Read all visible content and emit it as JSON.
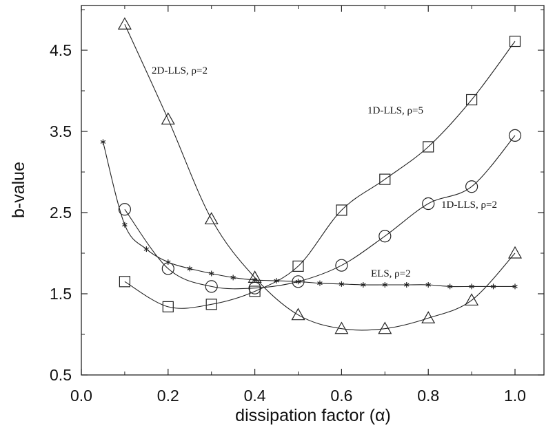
{
  "chart_data": {
    "type": "line",
    "xlabel": "dissipation factor (α)",
    "ylabel": "b-value",
    "xlim": [
      0.0,
      1.05
    ],
    "ylim": [
      0.5,
      5.0
    ],
    "x_ticks": [
      "0.0",
      "0.2",
      "0.4",
      "0.6",
      "0.8",
      "1.0"
    ],
    "y_ticks": [
      "0.5",
      "1.5",
      "2.5",
      "3.5",
      "4.5"
    ],
    "grid": false,
    "legend": "none",
    "series": [
      {
        "name": "2D-LLS, ρ=2",
        "marker": "triangle",
        "x": [
          0.1,
          0.2,
          0.3,
          0.4,
          0.5,
          0.6,
          0.7,
          0.8,
          0.9,
          1.0
        ],
        "y": [
          4.82,
          3.65,
          2.42,
          1.7,
          1.24,
          1.07,
          1.07,
          1.2,
          1.42,
          2.0
        ]
      },
      {
        "name": "1D-LLS, ρ=5",
        "marker": "square",
        "x": [
          0.1,
          0.2,
          0.3,
          0.4,
          0.5,
          0.6,
          0.7,
          0.8,
          0.9,
          1.0
        ],
        "y": [
          1.65,
          1.34,
          1.37,
          1.53,
          1.84,
          2.53,
          2.91,
          3.31,
          3.89,
          4.61
        ]
      },
      {
        "name": "1D-LLS, ρ=2",
        "marker": "circle",
        "x": [
          0.1,
          0.2,
          0.3,
          0.4,
          0.5,
          0.6,
          0.7,
          0.8,
          0.9,
          1.0
        ],
        "y": [
          2.54,
          1.81,
          1.59,
          1.57,
          1.65,
          1.85,
          2.21,
          2.61,
          2.82,
          3.45
        ]
      },
      {
        "name": "ELS, ρ=2",
        "marker": "asterisk",
        "x": [
          0.05,
          0.1,
          0.15,
          0.2,
          0.25,
          0.3,
          0.35,
          0.4,
          0.45,
          0.5,
          0.55,
          0.6,
          0.65,
          0.7,
          0.75,
          0.8,
          0.85,
          0.9,
          0.95,
          1.0
        ],
        "y": [
          3.37,
          2.35,
          2.05,
          1.89,
          1.81,
          1.75,
          1.7,
          1.67,
          1.66,
          1.65,
          1.63,
          1.62,
          1.61,
          1.61,
          1.61,
          1.61,
          1.59,
          1.59,
          1.59,
          1.59
        ]
      }
    ],
    "annotations": [
      "2D-LLS, ρ=2",
      "1D-LLS, ρ=5",
      "1D-LLS, ρ=2",
      "ELS, ρ=2"
    ]
  }
}
